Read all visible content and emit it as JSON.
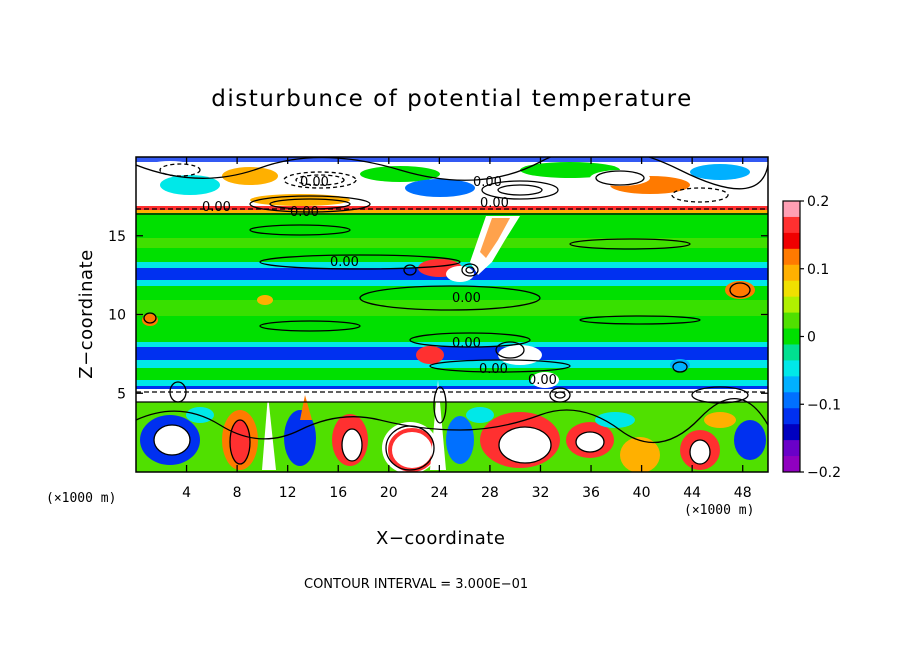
{
  "chart_data": {
    "type": "heatmap",
    "title": "disturbunce of potential temperature",
    "xlabel": "X−coordinate",
    "ylabel": "Z−coordinate",
    "x_unit": "(×1000 m)",
    "y_unit": "(×1000 m)",
    "xlim": [
      0,
      50
    ],
    "ylim": [
      0,
      20
    ],
    "x_ticks": [
      4,
      8,
      12,
      16,
      20,
      24,
      28,
      32,
      36,
      40,
      44,
      48
    ],
    "y_ticks": [
      5,
      10,
      15
    ],
    "colorbar": {
      "min": -0.2,
      "max": 0.2,
      "ticks": [
        "0.2",
        "0.1",
        "0",
        "−0.1",
        "−0.2"
      ],
      "colors": [
        "#ff9fb4",
        "#ff3030",
        "#f00000",
        "#ff7a00",
        "#ffb000",
        "#f0e000",
        "#b0f000",
        "#50e000",
        "#00e000",
        "#00e090",
        "#00e8e8",
        "#00b0ff",
        "#0070ff",
        "#0030f0",
        "#0000c0",
        "#6a00c8",
        "#9000c0"
      ]
    },
    "contour_labels": [
      "0.00",
      "0.00",
      "0.00",
      "0.00",
      "0.00",
      "0.00",
      "0.00",
      "0.00",
      "0.00",
      "0.00"
    ],
    "contour_interval_text": "CONTOUR INTERVAL = 3.000E−01"
  }
}
